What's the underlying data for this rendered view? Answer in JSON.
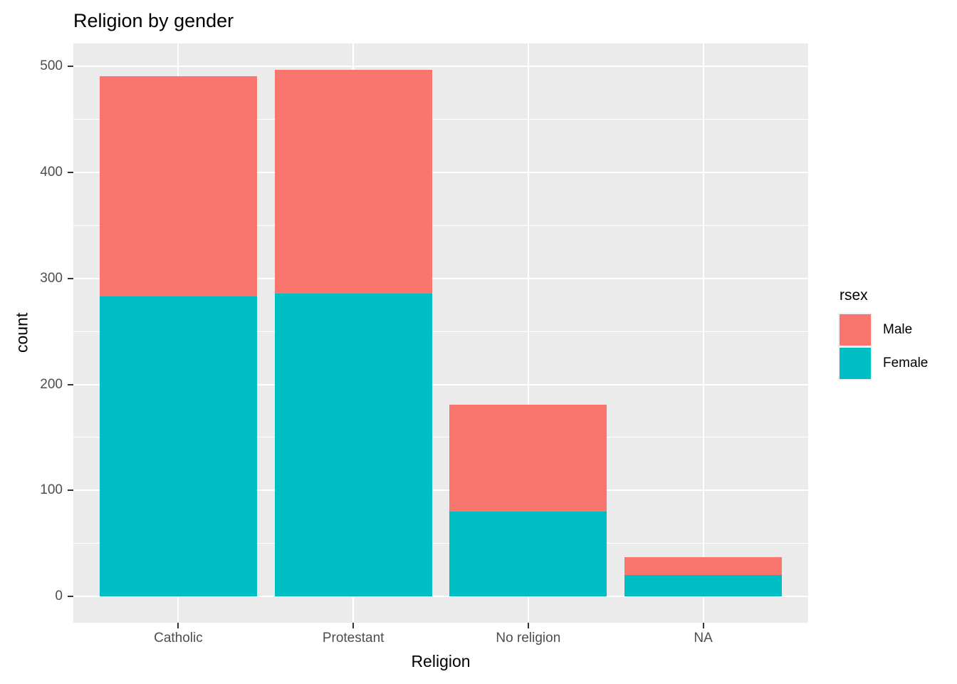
{
  "chart": {
    "title": "Religion by gender",
    "xlabel": "Religion",
    "ylabel": "count",
    "legend_title": "rsex"
  },
  "chart_data": {
    "type": "bar",
    "stacked": true,
    "title": "Religion by gender",
    "xlabel": "Religion",
    "ylabel": "count",
    "categories": [
      "Catholic",
      "Protestant",
      "No religion",
      "NA"
    ],
    "series": [
      {
        "name": "Male",
        "color": "#F8766D",
        "values": [
          208,
          211,
          101,
          17
        ]
      },
      {
        "name": "Female",
        "color": "#00BFC4",
        "values": [
          283,
          286,
          80,
          20
        ]
      }
    ],
    "stack_order_bottom_to_top": [
      "Female",
      "Male"
    ],
    "totals": [
      491,
      497,
      181,
      37
    ],
    "ylim": [
      0,
      500
    ],
    "yticks": [
      0,
      100,
      200,
      300,
      400,
      500
    ],
    "yticks_minor": [
      50,
      150,
      250,
      350,
      450
    ],
    "grid": true,
    "legend": {
      "title": "rsex",
      "position": "right",
      "entries": [
        "Male",
        "Female"
      ]
    },
    "colors": {
      "panel_background": "#EBEBEB",
      "gridline": "#FFFFFF",
      "tick_text": "#4D4D4D",
      "tick_mark": "#333333",
      "title_text": "#000000"
    }
  }
}
